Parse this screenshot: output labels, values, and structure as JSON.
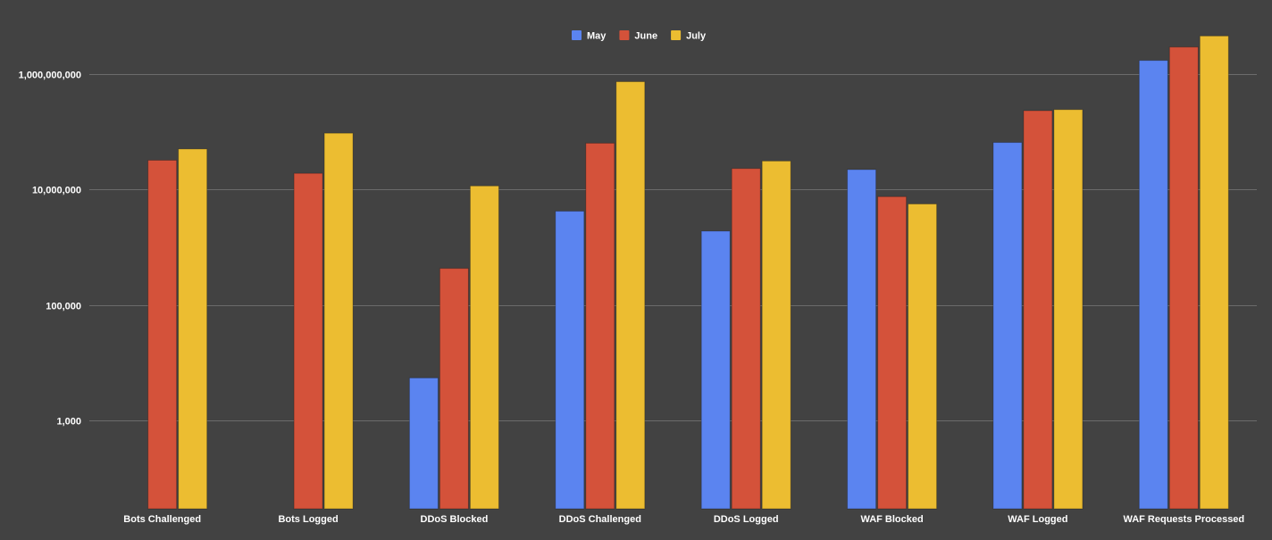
{
  "chart_data": {
    "type": "bar",
    "title": "",
    "xlabel": "",
    "ylabel": "",
    "y_scale": "log",
    "ylim": [
      30,
      6500000000
    ],
    "y_ticks": [
      1000,
      100000,
      10000000,
      1000000000
    ],
    "y_tick_labels": [
      "1,000",
      "100,000",
      "10,000,000",
      "1,000,000,000"
    ],
    "grid": true,
    "legend_position": "top-center",
    "background": "#424242",
    "categories": [
      "Bots Challenged",
      "Bots Logged",
      "DDoS Blocked",
      "DDoS Challenged",
      "DDoS Logged",
      "WAF Blocked",
      "WAF Logged",
      "WAF Requests Processed"
    ],
    "series": [
      {
        "name": "May",
        "color": "#5b84f0",
        "values": [
          null,
          null,
          5500,
          4200000,
          1900000,
          22000000,
          65000000,
          1700000000
        ]
      },
      {
        "name": "June",
        "color": "#d4523a",
        "values": [
          32000000,
          19000000,
          430000,
          63000000,
          23000000,
          7500000,
          230000000,
          2900000000
        ]
      },
      {
        "name": "July",
        "color": "#ecbd31",
        "values": [
          50000000,
          94000000,
          11500000,
          730000000,
          31000000,
          5600000,
          240000000,
          4500000000
        ]
      }
    ]
  }
}
